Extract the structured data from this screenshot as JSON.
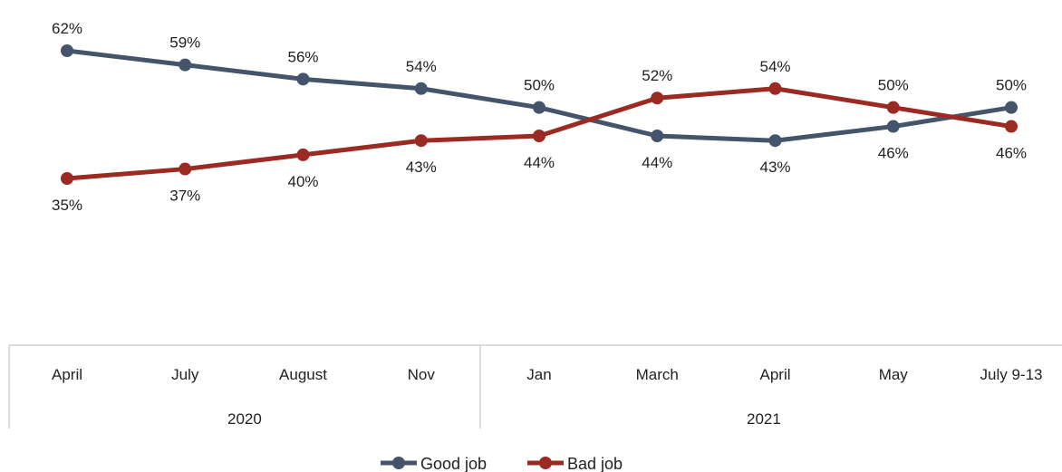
{
  "chart_data": {
    "type": "line",
    "categories": [
      "April",
      "July",
      "August",
      "Nov",
      "Jan",
      "March",
      "April",
      "May",
      "July 9-13"
    ],
    "groups": [
      {
        "label": "2020",
        "span": [
          0,
          3
        ]
      },
      {
        "label": "2021",
        "span": [
          4,
          8
        ]
      }
    ],
    "series": [
      {
        "name": "Good job",
        "color": "#44546a",
        "values": [
          62,
          59,
          56,
          54,
          50,
          44,
          43,
          46,
          50
        ],
        "labels": [
          "62%",
          "59%",
          "56%",
          "54%",
          "50%",
          "44%",
          "43%",
          "46%",
          "50%"
        ]
      },
      {
        "name": "Bad job",
        "color": "#9b2a22",
        "values": [
          35,
          37,
          40,
          43,
          44,
          52,
          54,
          50,
          46
        ],
        "labels": [
          "35%",
          "37%",
          "40%",
          "43%",
          "44%",
          "52%",
          "54%",
          "50%",
          "46%"
        ]
      }
    ],
    "legend": "bottom",
    "grid": false
  }
}
